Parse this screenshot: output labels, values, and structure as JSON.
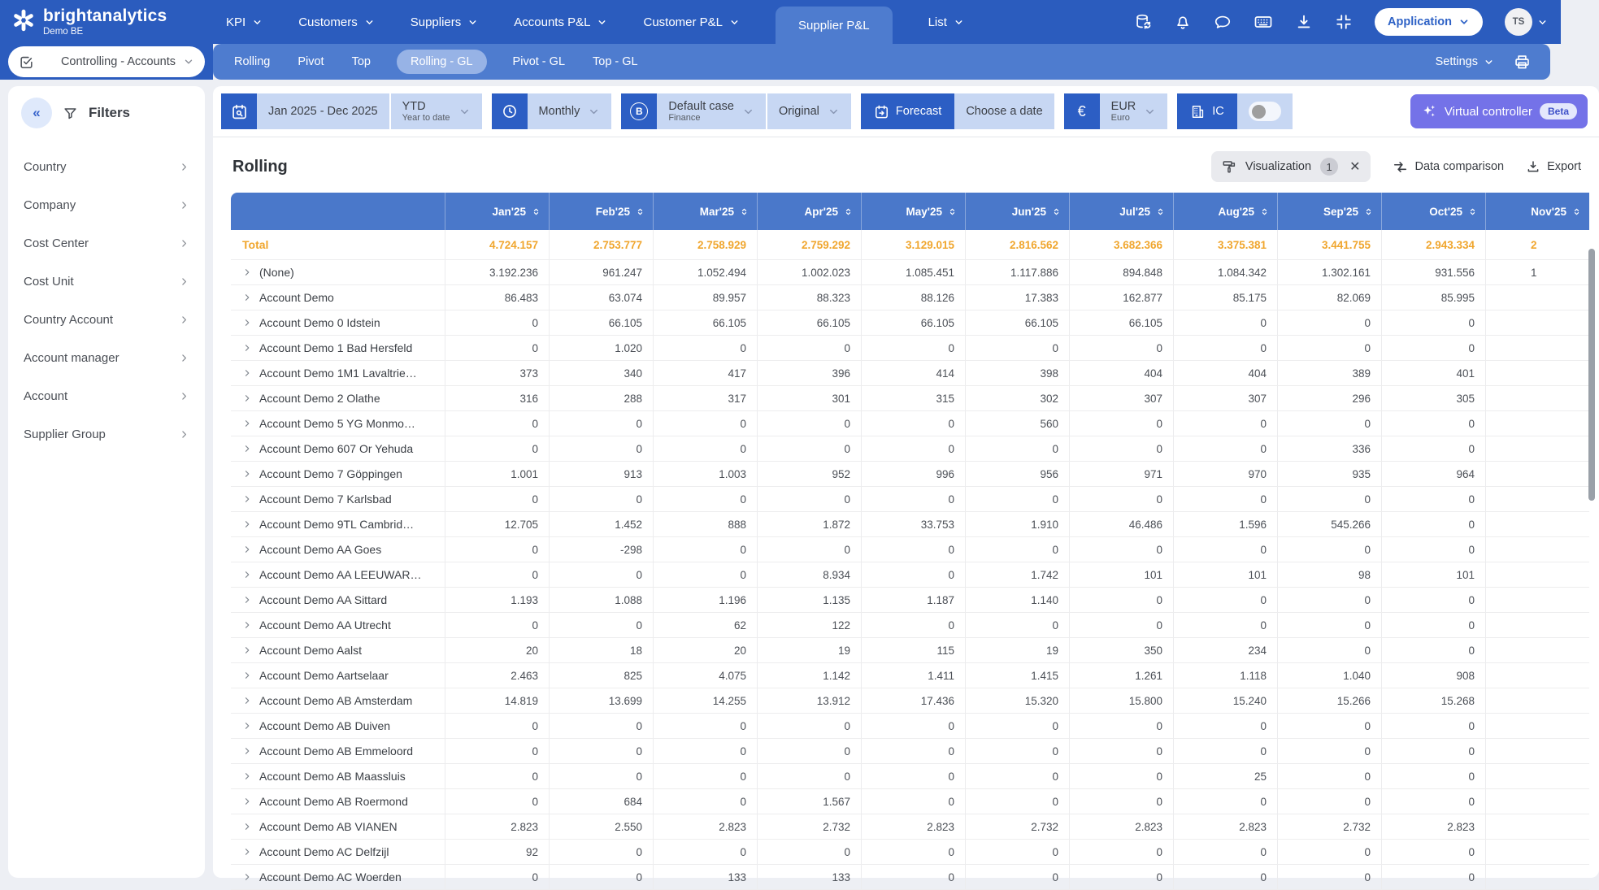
{
  "brand": {
    "name": "brightanalytics",
    "environment": "Demo BE"
  },
  "top_nav": {
    "items": [
      {
        "label": "KPI",
        "dropdown": true
      },
      {
        "label": "Customers",
        "dropdown": true
      },
      {
        "label": "Suppliers",
        "dropdown": true
      },
      {
        "label": "Accounts P&L",
        "dropdown": true
      },
      {
        "label": "Customer P&L",
        "dropdown": true
      },
      {
        "label": "Supplier P&L",
        "dropdown": false,
        "active": true
      },
      {
        "label": "List",
        "dropdown": true
      }
    ],
    "application_button": "Application",
    "avatar_initials": "TS"
  },
  "view_selector": {
    "label": "Controlling - Accounts"
  },
  "sub_nav": {
    "tabs": [
      {
        "label": "Rolling"
      },
      {
        "label": "Pivot"
      },
      {
        "label": "Top"
      },
      {
        "label": "Rolling - GL",
        "active": true
      },
      {
        "label": "Pivot - GL"
      },
      {
        "label": "Top - GL"
      }
    ],
    "settings_label": "Settings"
  },
  "sidebar": {
    "title": "Filters",
    "items": [
      "Country",
      "Company",
      "Cost Center",
      "Cost Unit",
      "Country Account",
      "Account manager",
      "Account",
      "Supplier Group"
    ]
  },
  "toolbar": {
    "date_range": "Jan 2025 - Dec 2025",
    "ytd_label": "YTD",
    "ytd_sub": "Year to date",
    "granularity": "Monthly",
    "case_label": "Default case",
    "case_sub": "Finance",
    "version": "Original",
    "forecast_label": "Forecast",
    "choose_date_label": "Choose a date",
    "currency_label": "EUR",
    "currency_sub": "Euro",
    "currency_symbol": "€",
    "ic_label": "IC",
    "ic_toggle_on": false,
    "virtual_controller_label": "Virtual controller",
    "virtual_controller_badge": "Beta"
  },
  "section": {
    "title": "Rolling",
    "visualization_label": "Visualization",
    "visualization_count": "1",
    "data_comparison_label": "Data comparison",
    "export_label": "Export"
  },
  "colors": {
    "topbar": "#2b5cbe",
    "subnav": "#4e7ccf",
    "table_header": "#4a78ca",
    "total_row": "#f0a62e",
    "toolbar_dark": "#2c5ec4",
    "toolbar_light": "#c7d7f3",
    "virtual_controller": "#7472e8"
  },
  "table": {
    "columns": [
      "Jan'25",
      "Feb'25",
      "Mar'25",
      "Apr'25",
      "May'25",
      "Jun'25",
      "Jul'25",
      "Aug'25",
      "Sep'25",
      "Oct'25",
      "Nov'25"
    ],
    "total": {
      "label": "Total",
      "values": [
        "4.724.157",
        "2.753.777",
        "2.758.929",
        "2.759.292",
        "3.129.015",
        "2.816.562",
        "3.682.366",
        "3.375.381",
        "3.441.755",
        "2.943.334"
      ],
      "nov_partial": "2"
    },
    "rows": [
      {
        "name": "(None)",
        "values": [
          "3.192.236",
          "961.247",
          "1.052.494",
          "1.002.023",
          "1.085.451",
          "1.117.886",
          "894.848",
          "1.084.342",
          "1.302.161",
          "931.556"
        ],
        "nov": "1"
      },
      {
        "name": "Account Demo",
        "values": [
          "86.483",
          "63.074",
          "89.957",
          "88.323",
          "88.126",
          "17.383",
          "162.877",
          "85.175",
          "82.069",
          "85.995"
        ],
        "nov": ""
      },
      {
        "name": "Account Demo 0 Idstein",
        "values": [
          "0",
          "66.105",
          "66.105",
          "66.105",
          "66.105",
          "66.105",
          "66.105",
          "0",
          "0",
          "0"
        ],
        "nov": ""
      },
      {
        "name": "Account Demo 1 Bad Hersfeld",
        "values": [
          "0",
          "1.020",
          "0",
          "0",
          "0",
          "0",
          "0",
          "0",
          "0",
          "0"
        ],
        "nov": ""
      },
      {
        "name": "Account Demo 1M1 Lavaltrie…",
        "values": [
          "373",
          "340",
          "417",
          "396",
          "414",
          "398",
          "404",
          "404",
          "389",
          "401"
        ],
        "nov": ""
      },
      {
        "name": "Account Demo 2 Olathe",
        "values": [
          "316",
          "288",
          "317",
          "301",
          "315",
          "302",
          "307",
          "307",
          "296",
          "305"
        ],
        "nov": ""
      },
      {
        "name": "Account Demo 5 YG Monmo…",
        "values": [
          "0",
          "0",
          "0",
          "0",
          "0",
          "560",
          "0",
          "0",
          "0",
          "0"
        ],
        "nov": ""
      },
      {
        "name": "Account Demo 607 Or Yehuda",
        "values": [
          "0",
          "0",
          "0",
          "0",
          "0",
          "0",
          "0",
          "0",
          "336",
          "0"
        ],
        "nov": ""
      },
      {
        "name": "Account Demo 7 Göppingen",
        "values": [
          "1.001",
          "913",
          "1.003",
          "952",
          "996",
          "956",
          "971",
          "970",
          "935",
          "964"
        ],
        "nov": ""
      },
      {
        "name": "Account Demo 7 Karlsbad",
        "values": [
          "0",
          "0",
          "0",
          "0",
          "0",
          "0",
          "0",
          "0",
          "0",
          "0"
        ],
        "nov": ""
      },
      {
        "name": "Account Demo 9TL Cambrid…",
        "values": [
          "12.705",
          "1.452",
          "888",
          "1.872",
          "33.753",
          "1.910",
          "46.486",
          "1.596",
          "545.266",
          "0"
        ],
        "nov": ""
      },
      {
        "name": "Account Demo AA Goes",
        "values": [
          "0",
          "-298",
          "0",
          "0",
          "0",
          "0",
          "0",
          "0",
          "0",
          "0"
        ],
        "nov": ""
      },
      {
        "name": "Account Demo AA LEEUWAR…",
        "values": [
          "0",
          "0",
          "0",
          "8.934",
          "0",
          "1.742",
          "101",
          "101",
          "98",
          "101"
        ],
        "nov": ""
      },
      {
        "name": "Account Demo AA Sittard",
        "values": [
          "1.193",
          "1.088",
          "1.196",
          "1.135",
          "1.187",
          "1.140",
          "0",
          "0",
          "0",
          "0"
        ],
        "nov": ""
      },
      {
        "name": "Account Demo AA Utrecht",
        "values": [
          "0",
          "0",
          "62",
          "122",
          "0",
          "0",
          "0",
          "0",
          "0",
          "0"
        ],
        "nov": ""
      },
      {
        "name": "Account Demo Aalst",
        "values": [
          "20",
          "18",
          "20",
          "19",
          "115",
          "19",
          "350",
          "234",
          "0",
          "0"
        ],
        "nov": ""
      },
      {
        "name": "Account Demo Aartselaar",
        "values": [
          "2.463",
          "825",
          "4.075",
          "1.142",
          "1.411",
          "1.415",
          "1.261",
          "1.118",
          "1.040",
          "908"
        ],
        "nov": ""
      },
      {
        "name": "Account Demo AB Amsterdam",
        "values": [
          "14.819",
          "13.699",
          "14.255",
          "13.912",
          "17.436",
          "15.320",
          "15.800",
          "15.240",
          "15.266",
          "15.268"
        ],
        "nov": ""
      },
      {
        "name": "Account Demo AB Duiven",
        "values": [
          "0",
          "0",
          "0",
          "0",
          "0",
          "0",
          "0",
          "0",
          "0",
          "0"
        ],
        "nov": ""
      },
      {
        "name": "Account Demo AB Emmeloord",
        "values": [
          "0",
          "0",
          "0",
          "0",
          "0",
          "0",
          "0",
          "0",
          "0",
          "0"
        ],
        "nov": ""
      },
      {
        "name": "Account Demo AB Maassluis",
        "values": [
          "0",
          "0",
          "0",
          "0",
          "0",
          "0",
          "0",
          "25",
          "0",
          "0"
        ],
        "nov": ""
      },
      {
        "name": "Account Demo AB Roermond",
        "values": [
          "0",
          "684",
          "0",
          "1.567",
          "0",
          "0",
          "0",
          "0",
          "0",
          "0"
        ],
        "nov": ""
      },
      {
        "name": "Account Demo AB VIANEN",
        "values": [
          "2.823",
          "2.550",
          "2.823",
          "2.732",
          "2.823",
          "2.732",
          "2.823",
          "2.823",
          "2.732",
          "2.823"
        ],
        "nov": ""
      },
      {
        "name": "Account Demo AC Delfzijl",
        "values": [
          "92",
          "0",
          "0",
          "0",
          "0",
          "0",
          "0",
          "0",
          "0",
          "0"
        ],
        "nov": ""
      },
      {
        "name": "Account Demo AC Woerden",
        "values": [
          "0",
          "0",
          "133",
          "133",
          "0",
          "0",
          "0",
          "0",
          "0",
          "0"
        ],
        "nov": ""
      }
    ]
  }
}
